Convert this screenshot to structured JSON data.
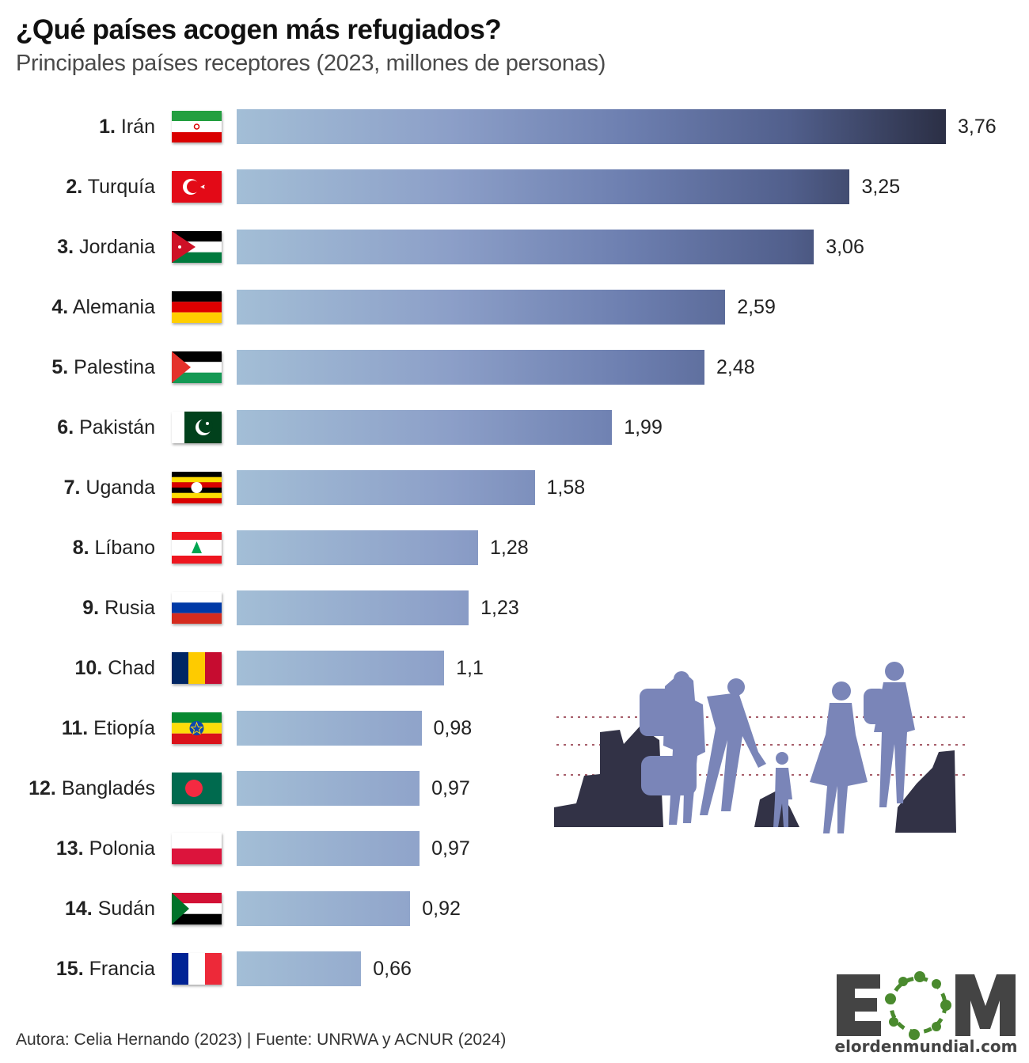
{
  "chart_data": {
    "type": "bar",
    "orientation": "horizontal",
    "title": "¿Qué países acogen más refugiados?",
    "subtitle": "Principales países receptores (2023, millones de personas)",
    "categories": [
      "Irán",
      "Turquía",
      "Jordania",
      "Alemania",
      "Palestina",
      "Pakistán",
      "Uganda",
      "Líbano",
      "Rusia",
      "Chad",
      "Etiopía",
      "Bangladés",
      "Polonia",
      "Sudán",
      "Francia"
    ],
    "ranks": [
      "1.",
      "2.",
      "3.",
      "4.",
      "5.",
      "6.",
      "7.",
      "8.",
      "9.",
      "10.",
      "11.",
      "12.",
      "13.",
      "14.",
      "15."
    ],
    "values": [
      3.76,
      3.25,
      3.06,
      2.59,
      2.48,
      1.99,
      1.58,
      1.28,
      1.23,
      1.1,
      0.98,
      0.97,
      0.97,
      0.92,
      0.66
    ],
    "value_labels": [
      "3,76",
      "3,25",
      "3,06",
      "2,59",
      "2,48",
      "1,99",
      "1,58",
      "1,28",
      "1,23",
      "1,1",
      "0,98",
      "0,97",
      "0,97",
      "0,92",
      "0,66"
    ],
    "flags": [
      "iran-flag-icon",
      "turkey-flag-icon",
      "jordan-flag-icon",
      "germany-flag-icon",
      "palestine-flag-icon",
      "pakistan-flag-icon",
      "uganda-flag-icon",
      "lebanon-flag-icon",
      "russia-flag-icon",
      "chad-flag-icon",
      "ethiopia-flag-icon",
      "bangladesh-flag-icon",
      "poland-flag-icon",
      "sudan-flag-icon",
      "france-flag-icon"
    ],
    "xlim": [
      0,
      3.76
    ],
    "grid": false,
    "colors": {
      "bar_start": "#a3bed6",
      "bar_end": "#2b2f45"
    }
  },
  "footer": "Autora: Celia Hernando (2023) | Fuente: UNRWA y ACNUR (2024)",
  "logo": {
    "letters": "EOM",
    "site": "elordenmundial.com",
    "green": "#4a8a2e",
    "gray": "#444444"
  }
}
